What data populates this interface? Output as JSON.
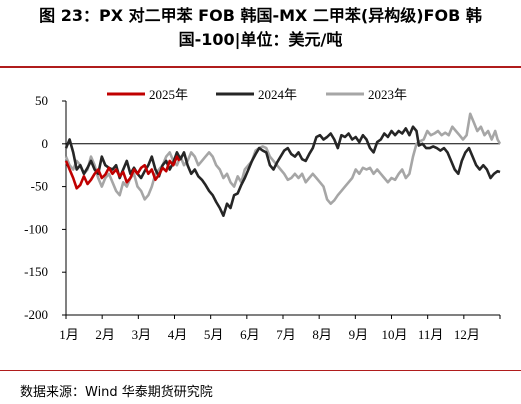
{
  "title": {
    "line1": "图 23：PX 对二甲苯 FOB 韩国-MX 二甲苯(异构级)FOB 韩",
    "line2": "国-100|单位：美元/吨"
  },
  "source": "数据来源：Wind  华泰期货研究院",
  "chart_data": {
    "type": "line",
    "title": "",
    "xlabel": "",
    "ylabel": "",
    "ylim": [
      -200,
      50
    ],
    "yticks": [
      50,
      0,
      -50,
      -100,
      -150,
      -200
    ],
    "xticklabels": [
      "1月",
      "2月",
      "3月",
      "4月",
      "5月",
      "6月",
      "7月",
      "8月",
      "9月",
      "10月",
      "11月",
      "12月"
    ],
    "xunit": "day-of-year",
    "xlim": [
      1,
      365
    ],
    "legend_position": "top",
    "series": [
      {
        "name": "2025年",
        "color": "#c00000",
        "points": [
          [
            1,
            -20
          ],
          [
            4,
            -30
          ],
          [
            7,
            -40
          ],
          [
            10,
            -52
          ],
          [
            13,
            -48
          ],
          [
            16,
            -38
          ],
          [
            19,
            -47
          ],
          [
            22,
            -42
          ],
          [
            25,
            -35
          ],
          [
            28,
            -30
          ],
          [
            31,
            -40
          ],
          [
            34,
            -36
          ],
          [
            37,
            -28
          ],
          [
            40,
            -35
          ],
          [
            43,
            -30
          ],
          [
            46,
            -38
          ],
          [
            49,
            -33
          ],
          [
            52,
            -45
          ],
          [
            55,
            -40
          ],
          [
            58,
            -30
          ],
          [
            61,
            -35
          ],
          [
            64,
            -28
          ],
          [
            67,
            -25
          ],
          [
            70,
            -35
          ],
          [
            73,
            -30
          ],
          [
            76,
            -42
          ],
          [
            79,
            -36
          ],
          [
            82,
            -28
          ],
          [
            85,
            -32
          ],
          [
            88,
            -20
          ],
          [
            91,
            -25
          ],
          [
            94,
            -15
          ],
          [
            96,
            -20
          ]
        ]
      },
      {
        "name": "2024年",
        "color": "#262626",
        "points": [
          [
            1,
            -5
          ],
          [
            4,
            5
          ],
          [
            7,
            -10
          ],
          [
            10,
            -30
          ],
          [
            13,
            -25
          ],
          [
            16,
            -35
          ],
          [
            19,
            -28
          ],
          [
            22,
            -20
          ],
          [
            25,
            -30
          ],
          [
            28,
            -35
          ],
          [
            31,
            -15
          ],
          [
            34,
            -25
          ],
          [
            37,
            -28
          ],
          [
            40,
            -30
          ],
          [
            43,
            -25
          ],
          [
            46,
            -40
          ],
          [
            49,
            -30
          ],
          [
            52,
            -20
          ],
          [
            55,
            -35
          ],
          [
            58,
            -28
          ],
          [
            61,
            -35
          ],
          [
            64,
            -40
          ],
          [
            67,
            -32
          ],
          [
            70,
            -25
          ],
          [
            73,
            -15
          ],
          [
            76,
            -30
          ],
          [
            79,
            -38
          ],
          [
            82,
            -25
          ],
          [
            85,
            -20
          ],
          [
            88,
            -30
          ],
          [
            91,
            -22
          ],
          [
            94,
            -10
          ],
          [
            97,
            -18
          ],
          [
            100,
            -10
          ],
          [
            103,
            -25
          ],
          [
            106,
            -35
          ],
          [
            109,
            -30
          ],
          [
            112,
            -38
          ],
          [
            115,
            -42
          ],
          [
            118,
            -48
          ],
          [
            121,
            -55
          ],
          [
            124,
            -60
          ],
          [
            127,
            -68
          ],
          [
            130,
            -75
          ],
          [
            133,
            -84
          ],
          [
            136,
            -70
          ],
          [
            139,
            -75
          ],
          [
            142,
            -60
          ],
          [
            145,
            -58
          ],
          [
            148,
            -48
          ],
          [
            151,
            -40
          ],
          [
            154,
            -30
          ],
          [
            157,
            -20
          ],
          [
            160,
            -12
          ],
          [
            163,
            -5
          ],
          [
            166,
            -8
          ],
          [
            169,
            -10
          ],
          [
            172,
            -25
          ],
          [
            175,
            -30
          ],
          [
            178,
            -22
          ],
          [
            181,
            -15
          ],
          [
            184,
            -8
          ],
          [
            187,
            -5
          ],
          [
            190,
            -12
          ],
          [
            193,
            -15
          ],
          [
            196,
            -10
          ],
          [
            199,
            -18
          ],
          [
            202,
            -20
          ],
          [
            205,
            -12
          ],
          [
            208,
            -5
          ],
          [
            211,
            8
          ],
          [
            214,
            10
          ],
          [
            217,
            5
          ],
          [
            220,
            8
          ],
          [
            223,
            12
          ],
          [
            226,
            5
          ],
          [
            229,
            -5
          ],
          [
            232,
            10
          ],
          [
            235,
            8
          ],
          [
            238,
            12
          ],
          [
            241,
            5
          ],
          [
            244,
            8
          ],
          [
            247,
            2
          ],
          [
            250,
            10
          ],
          [
            253,
            5
          ],
          [
            256,
            -5
          ],
          [
            259,
            -10
          ],
          [
            262,
            2
          ],
          [
            265,
            5
          ],
          [
            268,
            12
          ],
          [
            271,
            8
          ],
          [
            274,
            15
          ],
          [
            277,
            10
          ],
          [
            280,
            15
          ],
          [
            283,
            12
          ],
          [
            286,
            18
          ],
          [
            289,
            10
          ],
          [
            292,
            20
          ],
          [
            295,
            15
          ],
          [
            297,
            -2
          ],
          [
            300,
            0
          ],
          [
            303,
            -5
          ],
          [
            306,
            -5
          ],
          [
            309,
            -3
          ],
          [
            312,
            -5
          ],
          [
            315,
            -8
          ],
          [
            318,
            -5
          ],
          [
            321,
            -10
          ],
          [
            324,
            -20
          ],
          [
            327,
            -30
          ],
          [
            330,
            -35
          ],
          [
            333,
            -20
          ],
          [
            336,
            -10
          ],
          [
            339,
            -5
          ],
          [
            342,
            -15
          ],
          [
            345,
            -25
          ],
          [
            348,
            -30
          ],
          [
            351,
            -25
          ],
          [
            354,
            -30
          ],
          [
            357,
            -40
          ],
          [
            360,
            -35
          ],
          [
            363,
            -32
          ],
          [
            365,
            -33
          ]
        ]
      },
      {
        "name": "2023年",
        "color": "#a6a6a6",
        "points": [
          [
            1,
            -15
          ],
          [
            4,
            -25
          ],
          [
            7,
            -30
          ],
          [
            10,
            -20
          ],
          [
            13,
            -25
          ],
          [
            16,
            -35
          ],
          [
            19,
            -30
          ],
          [
            22,
            -15
          ],
          [
            25,
            -25
          ],
          [
            28,
            -40
          ],
          [
            31,
            -50
          ],
          [
            34,
            -40
          ],
          [
            37,
            -35
          ],
          [
            40,
            -45
          ],
          [
            43,
            -55
          ],
          [
            46,
            -60
          ],
          [
            49,
            -45
          ],
          [
            52,
            -50
          ],
          [
            55,
            -40
          ],
          [
            58,
            -35
          ],
          [
            61,
            -50
          ],
          [
            64,
            -55
          ],
          [
            67,
            -65
          ],
          [
            70,
            -60
          ],
          [
            73,
            -50
          ],
          [
            76,
            -35
          ],
          [
            79,
            -30
          ],
          [
            82,
            -25
          ],
          [
            85,
            -15
          ],
          [
            88,
            -10
          ],
          [
            91,
            -20
          ],
          [
            94,
            -25
          ],
          [
            97,
            -15
          ],
          [
            100,
            -25
          ],
          [
            103,
            -20
          ],
          [
            106,
            -10
          ],
          [
            109,
            -15
          ],
          [
            112,
            -25
          ],
          [
            115,
            -20
          ],
          [
            118,
            -15
          ],
          [
            121,
            -10
          ],
          [
            124,
            -15
          ],
          [
            127,
            -25
          ],
          [
            130,
            -30
          ],
          [
            133,
            -40
          ],
          [
            136,
            -35
          ],
          [
            139,
            -45
          ],
          [
            142,
            -50
          ],
          [
            145,
            -38
          ],
          [
            148,
            -45
          ],
          [
            151,
            -30
          ],
          [
            154,
            -25
          ],
          [
            157,
            -20
          ],
          [
            160,
            -8
          ],
          [
            163,
            -5
          ],
          [
            166,
            -3
          ],
          [
            169,
            -5
          ],
          [
            172,
            -15
          ],
          [
            175,
            -20
          ],
          [
            178,
            -25
          ],
          [
            181,
            -30
          ],
          [
            184,
            -35
          ],
          [
            187,
            -42
          ],
          [
            190,
            -40
          ],
          [
            193,
            -35
          ],
          [
            196,
            -40
          ],
          [
            199,
            -35
          ],
          [
            202,
            -45
          ],
          [
            205,
            -40
          ],
          [
            208,
            -35
          ],
          [
            211,
            -40
          ],
          [
            214,
            -45
          ],
          [
            217,
            -50
          ],
          [
            220,
            -65
          ],
          [
            223,
            -70
          ],
          [
            226,
            -66
          ],
          [
            229,
            -60
          ],
          [
            232,
            -55
          ],
          [
            235,
            -50
          ],
          [
            238,
            -45
          ],
          [
            241,
            -40
          ],
          [
            244,
            -30
          ],
          [
            247,
            -35
          ],
          [
            250,
            -28
          ],
          [
            253,
            -30
          ],
          [
            256,
            -28
          ],
          [
            259,
            -35
          ],
          [
            262,
            -30
          ],
          [
            265,
            -35
          ],
          [
            268,
            -40
          ],
          [
            271,
            -45
          ],
          [
            274,
            -40
          ],
          [
            277,
            -42
          ],
          [
            280,
            -35
          ],
          [
            283,
            -30
          ],
          [
            286,
            -40
          ],
          [
            289,
            -35
          ],
          [
            292,
            -15
          ],
          [
            295,
            0
          ],
          [
            298,
            3
          ],
          [
            301,
            5
          ],
          [
            304,
            15
          ],
          [
            307,
            10
          ],
          [
            310,
            12
          ],
          [
            313,
            15
          ],
          [
            316,
            10
          ],
          [
            319,
            13
          ],
          [
            322,
            10
          ],
          [
            325,
            20
          ],
          [
            328,
            15
          ],
          [
            331,
            10
          ],
          [
            334,
            5
          ],
          [
            337,
            10
          ],
          [
            340,
            35
          ],
          [
            343,
            25
          ],
          [
            346,
            15
          ],
          [
            349,
            20
          ],
          [
            352,
            10
          ],
          [
            355,
            15
          ],
          [
            358,
            5
          ],
          [
            361,
            15
          ],
          [
            363,
            5
          ],
          [
            365,
            0
          ]
        ]
      }
    ]
  }
}
